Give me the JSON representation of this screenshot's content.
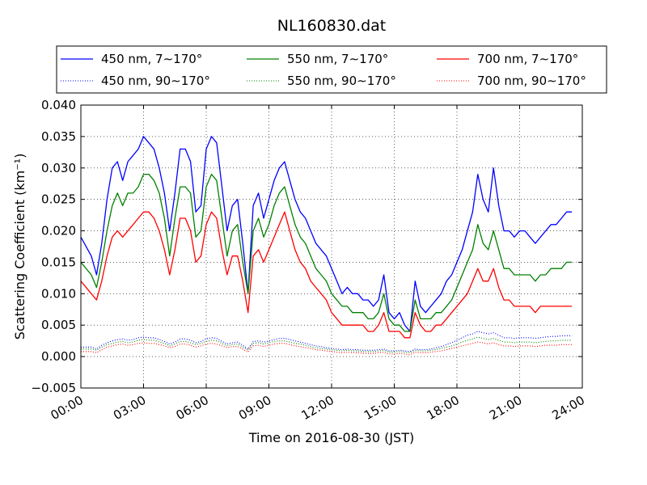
{
  "chart_data": {
    "type": "line",
    "title": "NL160830.dat",
    "xlabel": "Time on 2016-08-30 (JST)",
    "ylabel": "Scattering Coefficient (km⁻¹)",
    "xlim": [
      0,
      24
    ],
    "ylim": [
      -0.005,
      0.04
    ],
    "x_ticks": [
      0,
      3,
      6,
      9,
      12,
      15,
      18,
      21,
      24
    ],
    "x_tick_labels": [
      "00:00",
      "03:00",
      "06:00",
      "09:00",
      "12:00",
      "15:00",
      "18:00",
      "21:00",
      "24:00"
    ],
    "y_ticks": [
      -0.005,
      0.0,
      0.005,
      0.01,
      0.015,
      0.02,
      0.025,
      0.03,
      0.035,
      0.04
    ],
    "y_tick_labels": [
      "−0.005",
      "0.000",
      "0.005",
      "0.010",
      "0.015",
      "0.020",
      "0.025",
      "0.030",
      "0.035",
      "0.040"
    ],
    "grid": true,
    "legend_position": "top",
    "x": [
      0.0,
      0.5,
      0.75,
      1.0,
      1.25,
      1.5,
      1.75,
      2.0,
      2.25,
      2.5,
      2.75,
      3.0,
      3.25,
      3.5,
      3.75,
      4.0,
      4.25,
      4.5,
      4.75,
      5.0,
      5.25,
      5.5,
      5.75,
      6.0,
      6.25,
      6.5,
      6.75,
      7.0,
      7.25,
      7.5,
      7.75,
      8.0,
      8.25,
      8.5,
      8.75,
      9.0,
      9.25,
      9.5,
      9.75,
      10.0,
      10.25,
      10.5,
      10.75,
      11.0,
      11.25,
      11.5,
      11.75,
      12.0,
      12.25,
      12.5,
      12.75,
      13.0,
      13.25,
      13.5,
      13.75,
      14.0,
      14.25,
      14.5,
      14.75,
      15.0,
      15.25,
      15.5,
      15.75,
      16.0,
      16.25,
      16.5,
      16.75,
      17.0,
      17.25,
      17.5,
      17.75,
      18.0,
      18.25,
      18.5,
      18.75,
      19.0,
      19.25,
      19.5,
      19.75,
      20.0,
      20.25,
      20.5,
      20.75,
      21.0,
      21.25,
      21.5,
      21.75,
      22.0,
      22.25,
      22.5,
      22.75,
      23.0,
      23.25,
      23.5
    ],
    "series": [
      {
        "name": "450 nm, 7∼170°",
        "color": "#0000ff",
        "style": "solid",
        "values": [
          0.019,
          0.016,
          0.013,
          0.018,
          0.025,
          0.03,
          0.031,
          0.028,
          0.031,
          0.032,
          0.033,
          0.035,
          0.034,
          0.033,
          0.03,
          0.026,
          0.02,
          0.026,
          0.033,
          0.033,
          0.031,
          0.023,
          0.024,
          0.033,
          0.035,
          0.034,
          0.027,
          0.02,
          0.024,
          0.025,
          0.018,
          0.01,
          0.024,
          0.026,
          0.022,
          0.025,
          0.028,
          0.03,
          0.031,
          0.028,
          0.025,
          0.023,
          0.022,
          0.02,
          0.018,
          0.017,
          0.016,
          0.014,
          0.012,
          0.01,
          0.011,
          0.01,
          0.01,
          0.009,
          0.009,
          0.008,
          0.009,
          0.013,
          0.007,
          0.006,
          0.007,
          0.005,
          0.004,
          0.012,
          0.008,
          0.007,
          0.008,
          0.009,
          0.01,
          0.012,
          0.013,
          0.015,
          0.017,
          0.02,
          0.023,
          0.029,
          0.025,
          0.023,
          0.03,
          0.024,
          0.02,
          0.02,
          0.019,
          0.02,
          0.02,
          0.019,
          0.018,
          0.019,
          0.02,
          0.021,
          0.021,
          0.022,
          0.023,
          0.023
        ]
      },
      {
        "name": "450 nm, 90∼170°",
        "color": "#0000ff",
        "style": "dotted",
        "values": [
          0.0015,
          0.0015,
          0.0012,
          0.0018,
          0.0022,
          0.0025,
          0.0027,
          0.0028,
          0.0026,
          0.0027,
          0.003,
          0.0031,
          0.003,
          0.003,
          0.0027,
          0.0024,
          0.002,
          0.0023,
          0.0028,
          0.0028,
          0.0026,
          0.0022,
          0.0024,
          0.0028,
          0.003,
          0.0029,
          0.0024,
          0.002,
          0.0022,
          0.0023,
          0.0018,
          0.0012,
          0.0024,
          0.0025,
          0.0023,
          0.0025,
          0.0027,
          0.0029,
          0.0029,
          0.0027,
          0.0025,
          0.0023,
          0.0021,
          0.0019,
          0.0017,
          0.0016,
          0.0014,
          0.0013,
          0.0012,
          0.0011,
          0.0012,
          0.0011,
          0.0011,
          0.001,
          0.001,
          0.001,
          0.0011,
          0.0012,
          0.0009,
          0.0009,
          0.001,
          0.0009,
          0.0008,
          0.0012,
          0.0011,
          0.0011,
          0.0012,
          0.0014,
          0.0016,
          0.0019,
          0.0022,
          0.0026,
          0.003,
          0.0034,
          0.0036,
          0.004,
          0.0038,
          0.0036,
          0.0038,
          0.0034,
          0.003,
          0.003,
          0.0029,
          0.003,
          0.003,
          0.003,
          0.0029,
          0.003,
          0.0031,
          0.0032,
          0.0032,
          0.0033,
          0.0033,
          0.0033
        ]
      },
      {
        "name": "550 nm, 7∼170°",
        "color": "#008000",
        "style": "solid",
        "values": [
          0.015,
          0.013,
          0.011,
          0.015,
          0.02,
          0.024,
          0.026,
          0.024,
          0.026,
          0.026,
          0.027,
          0.029,
          0.029,
          0.028,
          0.026,
          0.022,
          0.016,
          0.022,
          0.027,
          0.027,
          0.026,
          0.019,
          0.02,
          0.027,
          0.029,
          0.028,
          0.022,
          0.016,
          0.02,
          0.021,
          0.015,
          0.01,
          0.02,
          0.022,
          0.019,
          0.021,
          0.024,
          0.026,
          0.027,
          0.024,
          0.021,
          0.019,
          0.018,
          0.016,
          0.014,
          0.013,
          0.012,
          0.01,
          0.009,
          0.008,
          0.008,
          0.007,
          0.007,
          0.007,
          0.006,
          0.006,
          0.007,
          0.01,
          0.006,
          0.005,
          0.005,
          0.004,
          0.004,
          0.009,
          0.006,
          0.006,
          0.006,
          0.007,
          0.007,
          0.008,
          0.009,
          0.011,
          0.013,
          0.015,
          0.017,
          0.021,
          0.018,
          0.017,
          0.02,
          0.017,
          0.014,
          0.014,
          0.013,
          0.013,
          0.013,
          0.013,
          0.012,
          0.013,
          0.013,
          0.014,
          0.014,
          0.014,
          0.015,
          0.015
        ]
      },
      {
        "name": "550 nm, 90∼170°",
        "color": "#008000",
        "style": "dotted",
        "values": [
          0.0012,
          0.0012,
          0.001,
          0.0015,
          0.0019,
          0.0021,
          0.0023,
          0.0024,
          0.0022,
          0.0023,
          0.0026,
          0.0027,
          0.0026,
          0.0026,
          0.0023,
          0.0021,
          0.0017,
          0.002,
          0.0024,
          0.0024,
          0.0022,
          0.0019,
          0.0021,
          0.0024,
          0.0026,
          0.0025,
          0.0021,
          0.0017,
          0.0019,
          0.002,
          0.0015,
          0.001,
          0.0021,
          0.0022,
          0.002,
          0.0022,
          0.0024,
          0.0025,
          0.0025,
          0.0023,
          0.0021,
          0.002,
          0.0018,
          0.0016,
          0.0014,
          0.0013,
          0.0012,
          0.0011,
          0.001,
          0.0009,
          0.001,
          0.0009,
          0.0009,
          0.0008,
          0.0008,
          0.0008,
          0.0009,
          0.001,
          0.0007,
          0.0007,
          0.0008,
          0.0007,
          0.0006,
          0.001,
          0.0009,
          0.0009,
          0.001,
          0.0011,
          0.0013,
          0.0015,
          0.0017,
          0.002,
          0.0023,
          0.0026,
          0.0028,
          0.0031,
          0.0029,
          0.0027,
          0.0029,
          0.0026,
          0.0023,
          0.0023,
          0.0022,
          0.0023,
          0.0023,
          0.0023,
          0.0022,
          0.0023,
          0.0024,
          0.0025,
          0.0025,
          0.0026,
          0.0026,
          0.0026
        ]
      },
      {
        "name": "700 nm, 7∼170°",
        "color": "#ff0000",
        "style": "solid",
        "values": [
          0.012,
          0.01,
          0.009,
          0.012,
          0.016,
          0.019,
          0.02,
          0.019,
          0.02,
          0.021,
          0.022,
          0.023,
          0.023,
          0.022,
          0.02,
          0.017,
          0.013,
          0.017,
          0.022,
          0.022,
          0.02,
          0.015,
          0.016,
          0.021,
          0.023,
          0.022,
          0.017,
          0.013,
          0.016,
          0.016,
          0.012,
          0.007,
          0.016,
          0.017,
          0.015,
          0.017,
          0.019,
          0.021,
          0.023,
          0.02,
          0.017,
          0.015,
          0.014,
          0.012,
          0.011,
          0.01,
          0.009,
          0.007,
          0.006,
          0.005,
          0.005,
          0.005,
          0.005,
          0.005,
          0.004,
          0.004,
          0.005,
          0.007,
          0.004,
          0.004,
          0.004,
          0.003,
          0.003,
          0.007,
          0.005,
          0.004,
          0.004,
          0.005,
          0.005,
          0.006,
          0.007,
          0.008,
          0.009,
          0.01,
          0.012,
          0.014,
          0.012,
          0.012,
          0.014,
          0.011,
          0.009,
          0.009,
          0.008,
          0.008,
          0.008,
          0.008,
          0.007,
          0.008,
          0.008,
          0.008,
          0.008,
          0.008,
          0.008,
          0.008
        ]
      },
      {
        "name": "700 nm, 90∼170°",
        "color": "#ff0000",
        "style": "dotted",
        "values": [
          0.0008,
          0.0008,
          0.0006,
          0.0011,
          0.0015,
          0.0017,
          0.0019,
          0.002,
          0.0018,
          0.0019,
          0.0021,
          0.0022,
          0.0021,
          0.0021,
          0.0019,
          0.0017,
          0.0014,
          0.0016,
          0.002,
          0.002,
          0.0018,
          0.0015,
          0.0017,
          0.002,
          0.0021,
          0.002,
          0.0017,
          0.0014,
          0.0016,
          0.0016,
          0.0012,
          0.0007,
          0.0017,
          0.0018,
          0.0016,
          0.0018,
          0.002,
          0.0021,
          0.0021,
          0.0019,
          0.0017,
          0.0016,
          0.0014,
          0.0013,
          0.0011,
          0.001,
          0.0009,
          0.0008,
          0.0007,
          0.0006,
          0.0007,
          0.0006,
          0.0006,
          0.0005,
          0.0005,
          0.0005,
          0.0006,
          0.0007,
          0.0004,
          0.0004,
          0.0005,
          0.0004,
          0.0003,
          0.0007,
          0.0006,
          0.0006,
          0.0007,
          0.0008,
          0.0009,
          0.0011,
          0.0013,
          0.0015,
          0.0017,
          0.0019,
          0.0021,
          0.0023,
          0.0022,
          0.002,
          0.0022,
          0.0019,
          0.0017,
          0.0017,
          0.0016,
          0.0017,
          0.0017,
          0.0017,
          0.0016,
          0.0017,
          0.0018,
          0.0018,
          0.0018,
          0.0019,
          0.0019,
          0.0019
        ]
      }
    ]
  }
}
